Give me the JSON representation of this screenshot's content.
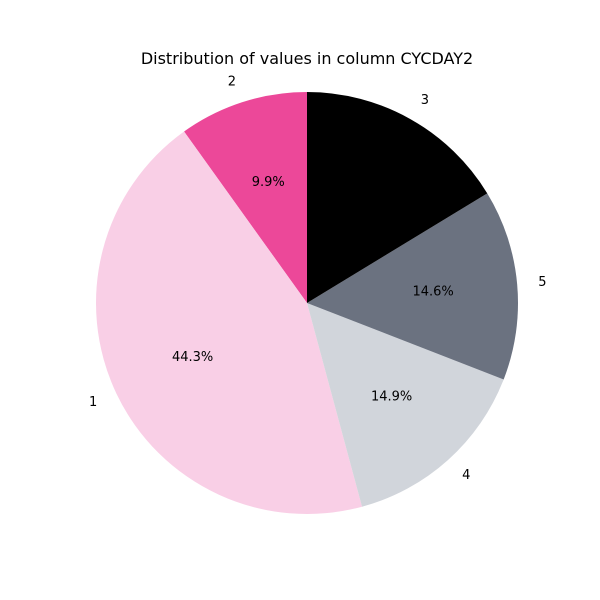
{
  "chart_data": {
    "type": "pie",
    "title": "Distribution of values in column CYCDAY2",
    "start_angle_deg": 90,
    "direction": "counterclockwise",
    "slices": [
      {
        "label": "2",
        "value": 9.9,
        "pct_label": "9.9%",
        "color": "#ec4899"
      },
      {
        "label": "1",
        "value": 44.3,
        "pct_label": "44.3%",
        "color": "#f9cfe6"
      },
      {
        "label": "4",
        "value": 14.9,
        "pct_label": "14.9%",
        "color": "#d1d5db"
      },
      {
        "label": "5",
        "value": 14.6,
        "pct_label": "14.6%",
        "color": "#6b7280"
      },
      {
        "label": "3",
        "value": 16.3,
        "pct_label": "16.3%",
        "color": "#000000"
      }
    ]
  }
}
